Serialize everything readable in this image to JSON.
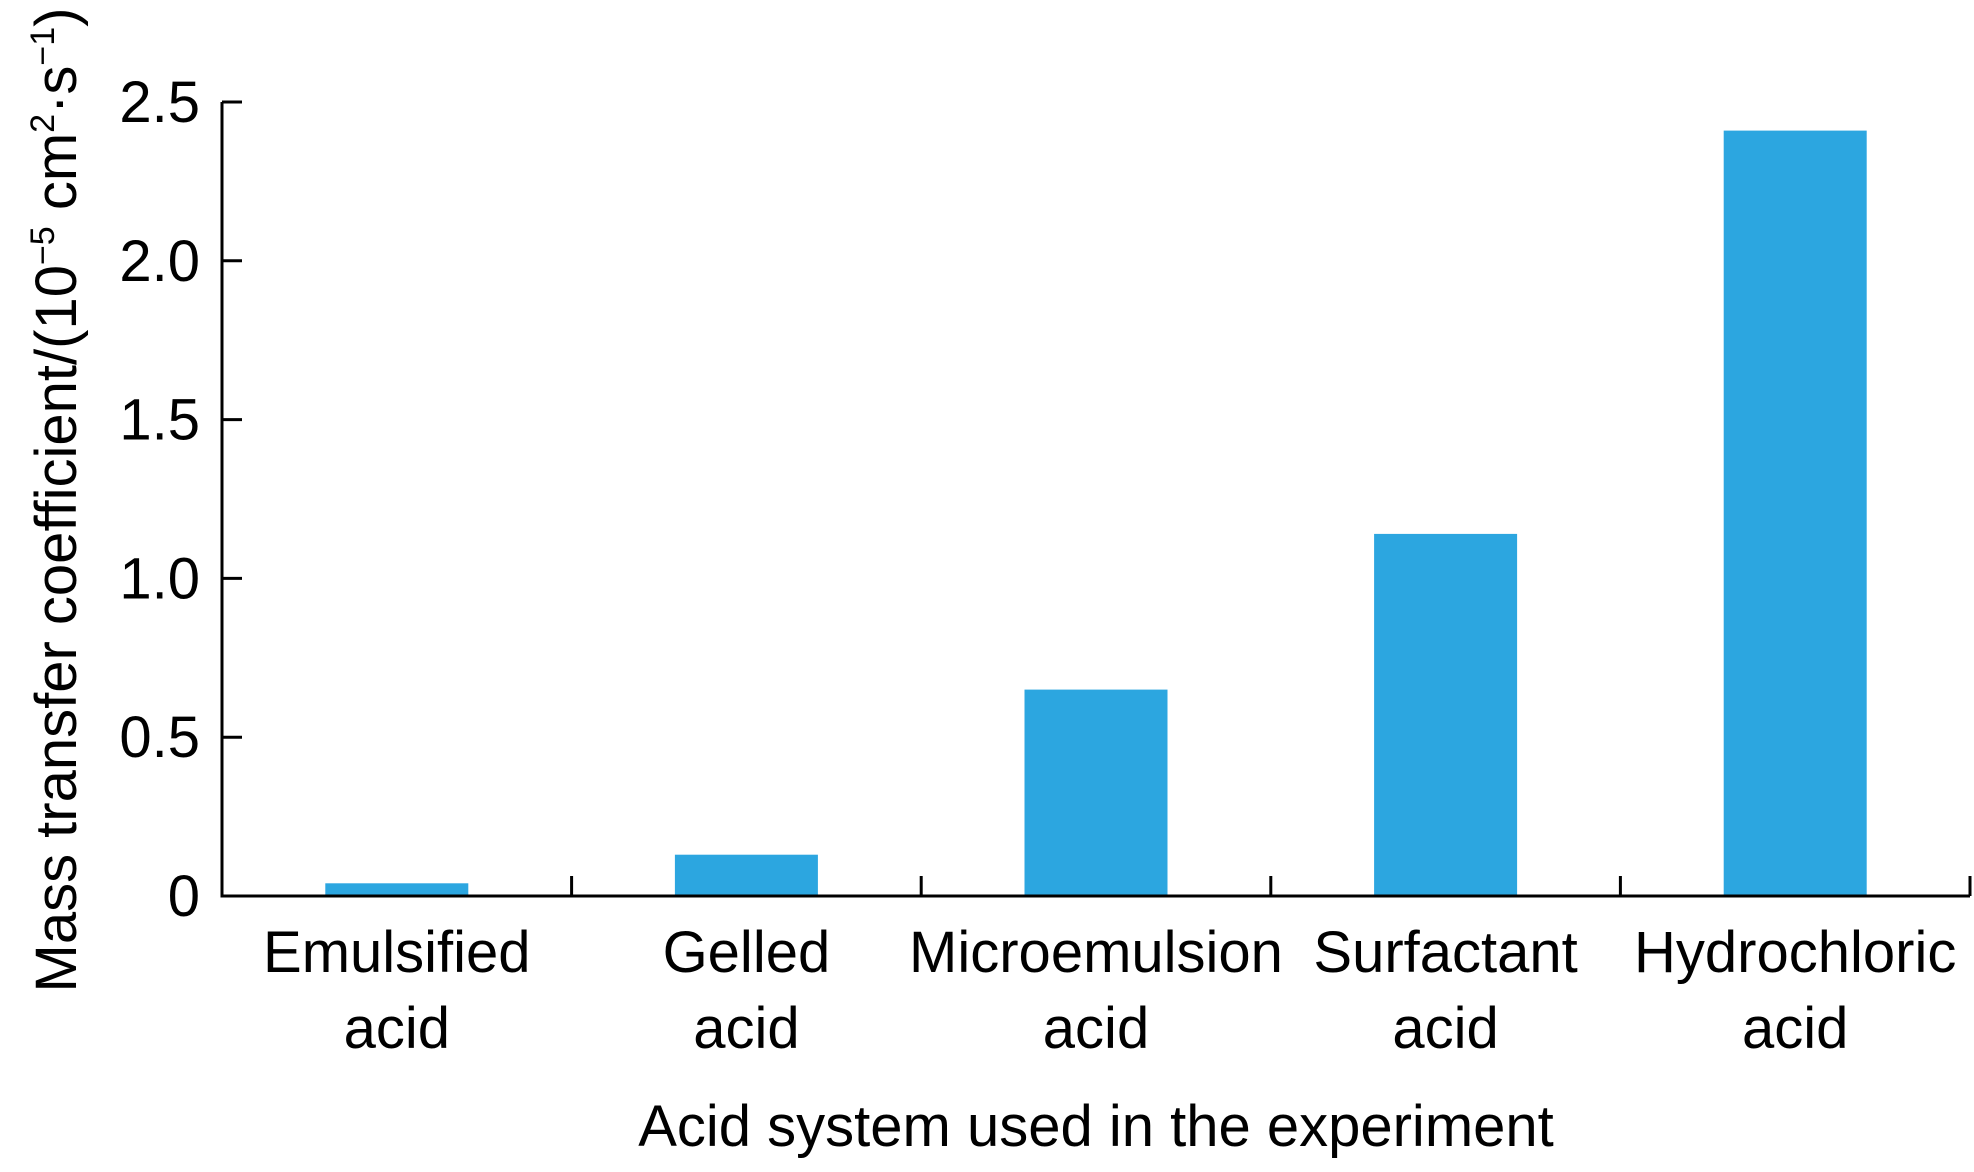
{
  "chart_data": {
    "type": "bar",
    "title": "",
    "categories": [
      [
        "Emulsified",
        "acid"
      ],
      [
        "Gelled",
        "acid"
      ],
      [
        "Microemulsion",
        "acid"
      ],
      [
        "Surfactant",
        "acid"
      ],
      [
        "Hydrochloric",
        "acid"
      ]
    ],
    "values": [
      0.04,
      0.13,
      0.65,
      1.14,
      2.41
    ],
    "xlabel": "Acid system used in the experiment",
    "ylabel": {
      "main": "Mass transfer coefficient/(10",
      "exp1": "−5",
      "mid": " cm",
      "exp2": "2",
      "dot": "·s",
      "exp3": "−1",
      "end": ")"
    },
    "ylim": [
      0,
      2.5
    ],
    "yticks": [
      0,
      0.5,
      1.0,
      1.5,
      2.0,
      2.5
    ],
    "ytick_labels": [
      "0",
      "0.5",
      "1.0",
      "1.5",
      "2.0",
      "2.5"
    ],
    "grid": false,
    "legend": "none",
    "bar_color": "#2ca6e0"
  }
}
